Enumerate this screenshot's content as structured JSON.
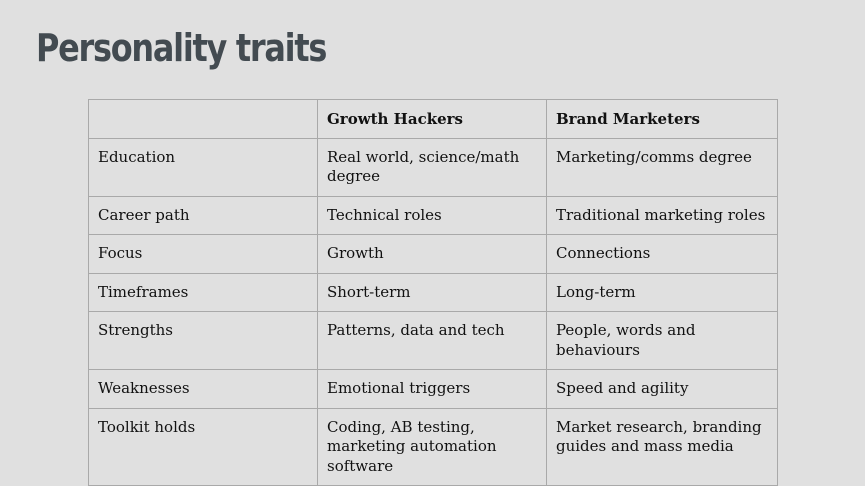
{
  "title": "Personality traits",
  "table": {
    "headers": [
      "",
      "Growth Hackers",
      "Brand Marketers"
    ],
    "rows": [
      [
        "Education",
        "Real world, science/math degree",
        "Marketing/comms degree"
      ],
      [
        "Career path",
        "Technical roles",
        "Traditional marketing roles"
      ],
      [
        "Focus",
        "Growth",
        "Connections"
      ],
      [
        "Timeframes",
        "Short-term",
        "Long-term"
      ],
      [
        "Strengths",
        "Patterns, data and tech",
        "People, words and behaviours"
      ],
      [
        "Weaknesses",
        "Emotional triggers",
        "Speed and agility"
      ],
      [
        "Toolkit holds",
        "Coding, AB testing, marketing automation software",
        "Market research, branding guides and mass media"
      ]
    ]
  }
}
